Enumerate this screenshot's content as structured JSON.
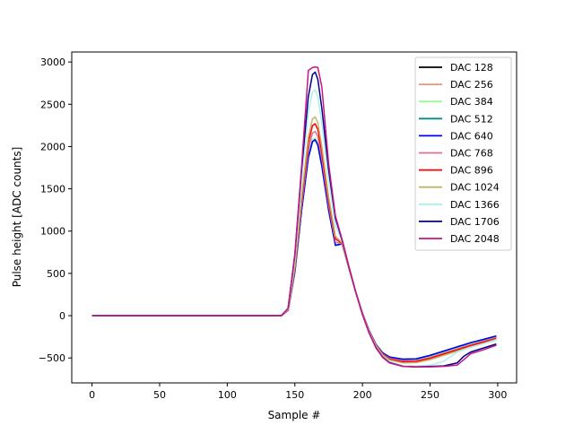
{
  "chart_data": {
    "type": "line",
    "title": "",
    "xlabel": "Sample #",
    "ylabel": "Pulse height [ADC counts]",
    "xlim": [
      -15,
      314
    ],
    "ylim": [
      -795,
      3118
    ],
    "xticks": [
      0,
      50,
      100,
      150,
      200,
      250,
      300
    ],
    "yticks": [
      -500,
      0,
      500,
      1000,
      1500,
      2000,
      2500,
      3000
    ],
    "grid": false,
    "legend_position": "top-right",
    "x": [
      0,
      140,
      145,
      150,
      155,
      160,
      163,
      165,
      167,
      170,
      175,
      180,
      185,
      190,
      195,
      200,
      205,
      210,
      215,
      220,
      230,
      240,
      250,
      260,
      270,
      275,
      280,
      290,
      299
    ],
    "series": [
      {
        "name": "DAC 128",
        "color": "#000000",
        "values": [
          0,
          0,
          62,
          520,
          1248,
          1872,
          2059,
          2080,
          2018,
          1768,
          1248,
          832,
          850,
          560,
          280,
          30,
          -180,
          -340,
          -440,
          -490,
          -515,
          -510,
          -470,
          -420,
          -370,
          -345,
          -320,
          -280,
          -240
        ]
      },
      {
        "name": "DAC 256",
        "color": "#e9967a",
        "values": [
          0,
          0,
          63,
          525,
          1260,
          1890,
          2079,
          2100,
          2037,
          1785,
          1260,
          840,
          850,
          560,
          280,
          30,
          -180,
          -340,
          -445,
          -500,
          -530,
          -525,
          -485,
          -435,
          -385,
          -360,
          -335,
          -295,
          -255
        ]
      },
      {
        "name": "DAC 384",
        "color": "#98fb98",
        "values": [
          0,
          0,
          63,
          525,
          1260,
          1890,
          2079,
          2100,
          2037,
          1785,
          1260,
          840,
          850,
          560,
          280,
          30,
          -180,
          -340,
          -445,
          -500,
          -530,
          -525,
          -485,
          -435,
          -385,
          -360,
          -335,
          -295,
          -255
        ]
      },
      {
        "name": "DAC 512",
        "color": "#008b8b",
        "values": [
          0,
          0,
          62,
          520,
          1248,
          1872,
          2059,
          2080,
          2018,
          1768,
          1248,
          832,
          850,
          560,
          280,
          30,
          -180,
          -340,
          -440,
          -490,
          -515,
          -510,
          -470,
          -420,
          -370,
          -345,
          -320,
          -280,
          -240
        ]
      },
      {
        "name": "DAC 640",
        "color": "#0000ff",
        "values": [
          0,
          0,
          62,
          520,
          1248,
          1872,
          2059,
          2080,
          2018,
          1768,
          1248,
          832,
          850,
          560,
          280,
          30,
          -180,
          -340,
          -440,
          -490,
          -515,
          -510,
          -470,
          -420,
          -370,
          -345,
          -320,
          -280,
          -240
        ]
      },
      {
        "name": "DAC 768",
        "color": "#db7093",
        "values": [
          0,
          0,
          65,
          545,
          1308,
          1962,
          2158,
          2180,
          2115,
          1853,
          1308,
          872,
          850,
          560,
          280,
          30,
          -185,
          -345,
          -450,
          -505,
          -535,
          -530,
          -495,
          -445,
          -395,
          -370,
          -345,
          -300,
          -260
        ]
      },
      {
        "name": "DAC 896",
        "color": "#ff0000",
        "values": [
          0,
          0,
          68,
          568,
          1362,
          2043,
          2247,
          2270,
          2202,
          1930,
          1362,
          908,
          855,
          560,
          280,
          25,
          -190,
          -350,
          -455,
          -515,
          -545,
          -540,
          -505,
          -455,
          -405,
          -380,
          -355,
          -310,
          -270
        ]
      },
      {
        "name": "DAC 1024",
        "color": "#bdb76b",
        "values": [
          0,
          0,
          71,
          588,
          1410,
          2115,
          2327,
          2350,
          2280,
          1998,
          1410,
          940,
          860,
          565,
          280,
          25,
          -195,
          -355,
          -465,
          -525,
          -560,
          -555,
          -520,
          -470,
          -420,
          -395,
          -370,
          -325,
          -280
        ]
      },
      {
        "name": "DAC 1366",
        "color": "#afeeee",
        "values": [
          0,
          0,
          80,
          668,
          1602,
          2403,
          2643,
          2670,
          2590,
          2270,
          1602,
          1068,
          880,
          570,
          280,
          20,
          -200,
          -365,
          -480,
          -545,
          -590,
          -595,
          -585,
          -540,
          -430,
          -400,
          -375,
          -330,
          -290
        ]
      },
      {
        "name": "DAC 1706",
        "color": "#00008b",
        "values": [
          0,
          0,
          86,
          720,
          1728,
          2592,
          2851,
          2880,
          2794,
          2448,
          1728,
          1152,
          890,
          575,
          280,
          15,
          -210,
          -375,
          -490,
          -555,
          -600,
          -605,
          -600,
          -595,
          -560,
          -480,
          -430,
          -380,
          -335
        ]
      },
      {
        "name": "DAC 2048",
        "color": "#c71585",
        "values": [
          0,
          0,
          88,
          735,
          1764,
          2900,
          2935,
          2940,
          2935,
          2700,
          1800,
          1180,
          900,
          580,
          280,
          15,
          -210,
          -380,
          -495,
          -560,
          -600,
          -605,
          -605,
          -600,
          -585,
          -520,
          -450,
          -400,
          -350
        ]
      }
    ]
  }
}
